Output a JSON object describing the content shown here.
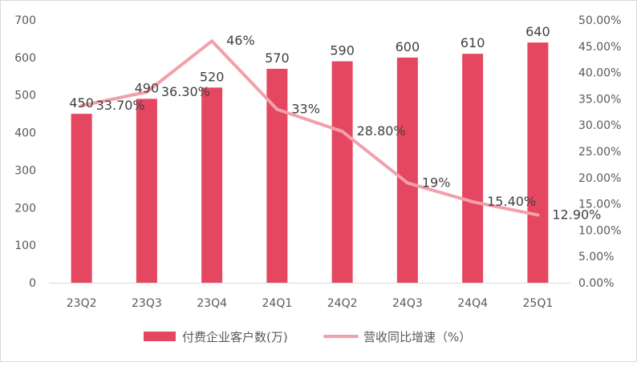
{
  "chart_data": {
    "type": "bar",
    "categories": [
      "23Q2",
      "23Q3",
      "23Q4",
      "24Q1",
      "24Q2",
      "24Q3",
      "24Q4",
      "25Q1"
    ],
    "series": [
      {
        "name": "付费企业客户数(万)",
        "type": "bar",
        "axis": "left",
        "values": [
          450,
          490,
          520,
          570,
          590,
          600,
          610,
          640
        ],
        "labels": [
          "450",
          "490",
          "520",
          "570",
          "590",
          "600",
          "610",
          "640"
        ],
        "color": "#e4475f"
      },
      {
        "name": "营收同比增速（%）",
        "type": "line",
        "axis": "right",
        "values": [
          33.7,
          36.3,
          46,
          33,
          28.8,
          19,
          15.4,
          12.9
        ],
        "labels": [
          "33.70%",
          "36.30%",
          "46%",
          "33%",
          "28.80%",
          "19%",
          "15.40%",
          "12.90%"
        ],
        "color": "#f2a0ab"
      }
    ],
    "y_left": {
      "ylim": [
        0,
        700
      ],
      "ticks": [
        "0",
        "100",
        "200",
        "300",
        "400",
        "500",
        "600",
        "700"
      ]
    },
    "y_right": {
      "ylim": [
        0,
        50
      ],
      "ticks": [
        "0.00%",
        "5.00%",
        "10.00%",
        "15.00%",
        "20.00%",
        "25.00%",
        "30.00%",
        "35.00%",
        "40.00%",
        "45.00%",
        "50.00%"
      ]
    },
    "grid": false,
    "legend": "bottom"
  }
}
